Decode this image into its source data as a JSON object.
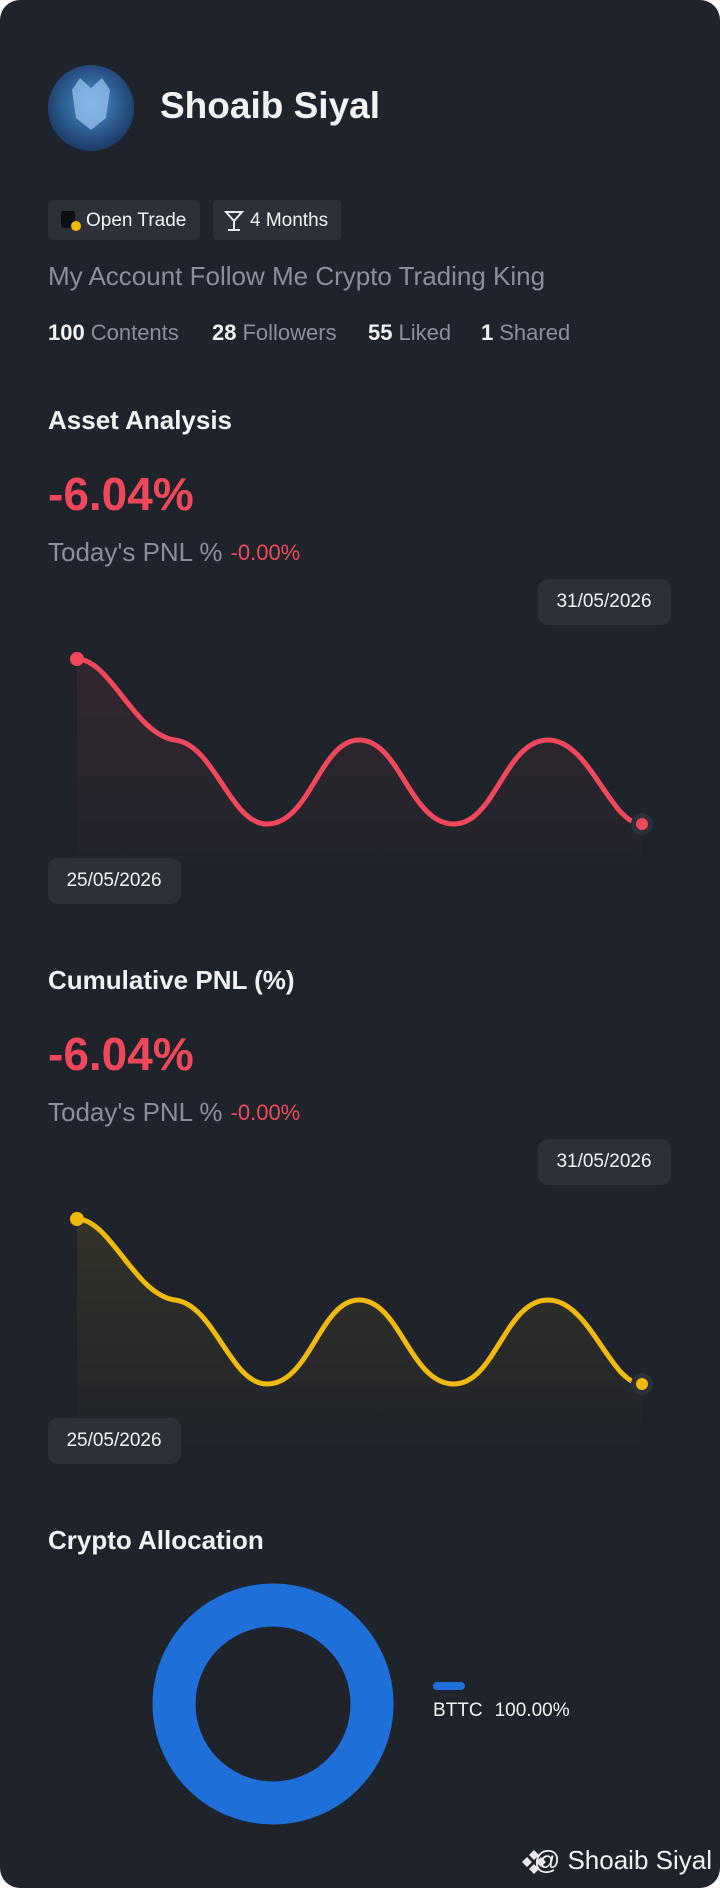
{
  "profile": {
    "name": "Shoaib Siyal",
    "tags": [
      "Open Trade",
      "4 Months"
    ],
    "bio": "My Account Follow Me Crypto Trading King",
    "stats": [
      {
        "count": "100",
        "label": "Contents"
      },
      {
        "count": "28",
        "label": "Followers"
      },
      {
        "count": "55",
        "label": "Liked"
      },
      {
        "count": "1",
        "label": "Shared"
      }
    ]
  },
  "sections": [
    {
      "title": "Asset Analysis",
      "value": "-6.04%",
      "today_label": "Today's PNL %",
      "today_value": "-0.00%",
      "end_date": "31/05/2026",
      "start_date": "25/05/2026"
    },
    {
      "title": "Cumulative PNL (%)",
      "value": "-6.04%",
      "today_label": "Today's PNL %",
      "today_value": "-0.00%",
      "end_date": "31/05/2026",
      "start_date": "25/05/2026"
    }
  ],
  "allocation": {
    "title": "Crypto Allocation",
    "items": [
      {
        "name": "BTTC",
        "share": "100.00%"
      }
    ]
  },
  "footer": {
    "handle": "@ Shoaib Siyal"
  }
}
